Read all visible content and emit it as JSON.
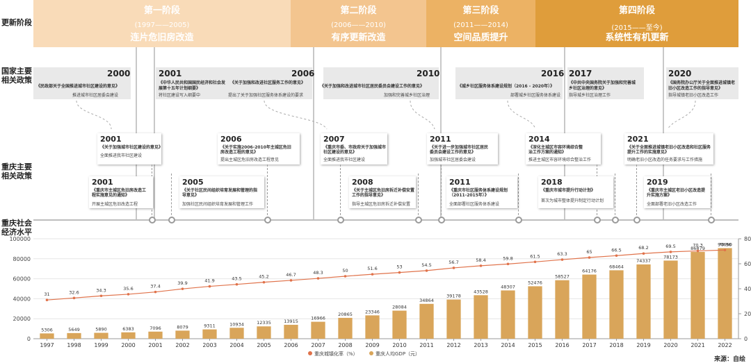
{
  "row_labels": {
    "stage": "更新阶段",
    "national": "国家主要相关政策",
    "chongqing": "重庆主要相关政策",
    "economy": "重庆社会经济水平"
  },
  "phases": [
    {
      "name": "第一阶段",
      "years": "(1997——2005)",
      "title": "连片危旧房改造",
      "color": "#f9dbb8"
    },
    {
      "name": "第二阶段",
      "years": "(2006——2010)",
      "title": "有序更新改造",
      "color": "#f3c58f"
    },
    {
      "name": "第三阶段",
      "years": "(2011——2014)",
      "title": "空间品质提升",
      "color": "#ecb264"
    },
    {
      "name": "第四阶段",
      "years": "(2015——至今)",
      "title": "系统性有机更新",
      "color": "#df9d3b"
    }
  ],
  "national_policies": [
    {
      "year": "2000",
      "title": "《民政部关于全国推进城市社区建设的意见》",
      "desc": "推进城市社区居委会建设"
    },
    {
      "year": "2001",
      "title": "《中华人民共和国国民经济和社会发展第十五年计划纲要》",
      "desc": "将社区建设写入纲要中"
    },
    {
      "year": "2006",
      "title": "《关于加强和改进社区服务工作的意见》",
      "desc": "提出了关于加强社区服务体系建设的要求"
    },
    {
      "year": "2010",
      "title": "《关于加强和改进城市社区居民委员会建设工作的意见》",
      "desc": "加强和完善城乡社区治理"
    },
    {
      "year": "2016",
      "title": "《城乡社区服务体系建设规划（2016 - 2020年）》",
      "desc": "部署城乡社区服务体系建设"
    },
    {
      "year": "2017",
      "title": "《中共中央国务院关于加强和完善城乡社区治理的意见》",
      "desc": "指导城乡社区治理工作"
    },
    {
      "year": "2020",
      "title": "《国务院办公厅关于全面推进城镇老旧小区改造工作的指导意见》",
      "desc": "指导城镇老旧小区改造工作"
    }
  ],
  "cq_upper": [
    {
      "year": "2001",
      "title": "《关于加强城市社区建设的意见》",
      "desc": "全面推进我市社区建设"
    },
    {
      "year": "2006",
      "title": "《关于实施2006-2010年主城区危旧房改造工程的意见》",
      "desc": "提出主城区危旧房改造工程意见"
    },
    {
      "year": "2007",
      "title": "《重庆市委、市政府关于加强城市社区建设的意见》",
      "desc": "全面推进我市社区建设"
    },
    {
      "year": "2011",
      "title": "《关于进一步加强城市社区居民委员会建设工作的意见》",
      "desc": "加强城市社区居委会建设"
    },
    {
      "year": "2014",
      "title": "《深化主城区市容环境综合整治工作方案的通知》",
      "desc": "推进主城区市容环境综合整治工作"
    },
    {
      "year": "2021",
      "title": "《关于全面推进城镇老旧小区改造和社区服务提升工作的实施意见》",
      "desc": "明确老旧小区改造的任务要求与工作措施"
    }
  ],
  "cq_lower": [
    {
      "year": "2001",
      "title": "《重庆市主城区危旧房改造工程实施意见的通知》",
      "desc": "开展主城区危旧改造工程"
    },
    {
      "year": "2005",
      "title": "《关于社区民间组织培育发展和管理的指导意见》",
      "desc": "加强社区民间组织培育发展和管理工作"
    },
    {
      "year": "2008",
      "title": "《关于主城区危旧房拆迁补偿安置工作的指导意见》",
      "desc": "指导主城区危旧房拆迁补偿安置"
    },
    {
      "year": "2011",
      "title": "《重庆市社区服务体系建设规划（2011-2015年）》",
      "desc": "全面部署社区服务体系建设"
    },
    {
      "year": "2018",
      "title": "《重庆市城市提升行动计划》",
      "desc": "首次为城市整体提升制定行动计划"
    },
    {
      "year": "2019",
      "title": "《重庆市主城区老旧小区改造提升实施方案》",
      "desc": "全面部署老旧小区改造工作"
    }
  ],
  "chart_data": {
    "type": "bar",
    "categories": [
      "1997",
      "1998",
      "1999",
      "2000",
      "2001",
      "2002",
      "2003",
      "2004",
      "2005",
      "2006",
      "2007",
      "2008",
      "2009",
      "2010",
      "2011",
      "2012",
      "2013",
      "2014",
      "2015",
      "2016",
      "2017",
      "2018",
      "2019",
      "2020",
      "2021",
      "2022"
    ],
    "series": [
      {
        "name": "重庆人均GDP（元）",
        "type": "bar",
        "axis": "left",
        "color": "#d9a55a",
        "values": [
          5306,
          5649,
          5890,
          6383,
          7096,
          8079,
          9311,
          10934,
          12335,
          13915,
          16966,
          20865,
          23346,
          28084,
          34864,
          39178,
          43528,
          48307,
          52476,
          58527,
          64176,
          68464,
          74337,
          78173,
          86879,
          90650
        ]
      },
      {
        "name": "重庆城镇化率（%）",
        "type": "line",
        "axis": "right",
        "color": "#e0724a",
        "values": [
          31.0,
          32.6,
          34.3,
          35.6,
          37.4,
          39.9,
          41.9,
          43.5,
          45.2,
          46.7,
          48.3,
          50.0,
          51.6,
          53.0,
          54.5,
          56.7,
          58.4,
          59.8,
          61.5,
          63.3,
          65.0,
          66.5,
          68.2,
          69.5,
          70.3,
          70.96
        ]
      }
    ],
    "left_ticks": [
      "0",
      "20000",
      "40000",
      "60000",
      "80000",
      "100000"
    ],
    "right_ticks": [
      "0",
      "20",
      "40",
      "60",
      "80"
    ],
    "ylim_left": [
      0,
      100000
    ],
    "ylim_right": [
      0,
      80
    ]
  },
  "source": "来源：自绘"
}
